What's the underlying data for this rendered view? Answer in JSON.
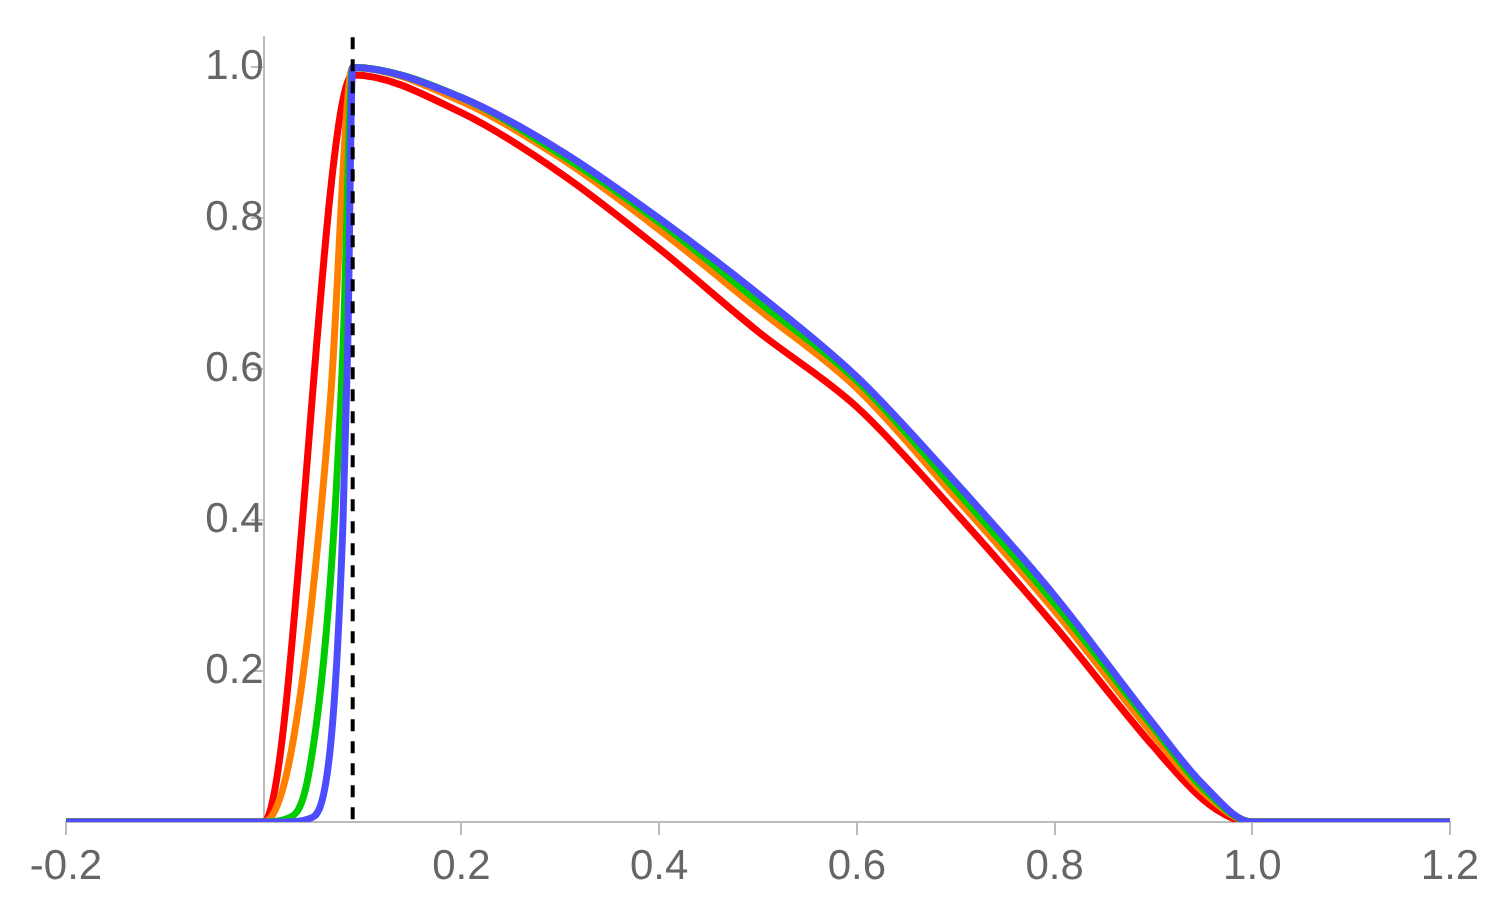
{
  "chart_data": {
    "type": "line",
    "xlim": [
      -0.2,
      1.2
    ],
    "ylim": [
      0,
      1.04
    ],
    "xticks": [
      -0.2,
      0.2,
      0.4,
      0.6,
      0.8,
      {
        "value": 1,
        "label": "1.0"
      },
      1.2
    ],
    "yticks": [
      0.2,
      0.4,
      0.6,
      0.8,
      {
        "value": 1,
        "label": "1.0"
      }
    ],
    "grid": false,
    "legend": false,
    "marker": "none",
    "line_style": "solid",
    "ref_lines": [
      {
        "axis": "x",
        "value": 0.09,
        "color": "#000000",
        "line_style": "dashed"
      }
    ],
    "series": [
      {
        "color": "#4d4dff",
        "x": [
          -0.2,
          0,
          0.0225,
          0.045,
          0.0675,
          0.08,
          0.085,
          0.09,
          0.2,
          0.3,
          0.4,
          0.5,
          0.6,
          0.7,
          0.8,
          0.9,
          0.95,
          1.0,
          1.2
        ],
        "values": [
          0,
          0,
          0,
          0.004,
          0.1,
          0.39,
          0.63,
          1,
          0.96,
          0.89,
          0.8,
          0.7,
          0.59,
          0.45,
          0.3,
          0.13,
          0.05,
          0,
          0
        ]
      },
      {
        "color": "#00cc00",
        "x": [
          -0.2,
          0,
          0.0225,
          0.045,
          0.0675,
          0.08,
          0.09,
          0.2,
          0.3,
          0.4,
          0.5,
          0.6,
          0.7,
          0.8,
          0.9,
          0.95,
          1.0,
          1.2
        ],
        "values": [
          0,
          0,
          0.004,
          0.06,
          0.32,
          0.62,
          1,
          0.96,
          0.885,
          0.795,
          0.69,
          0.585,
          0.44,
          0.29,
          0.125,
          0.045,
          0,
          0
        ]
      },
      {
        "color": "#ff8000",
        "x": [
          -0.2,
          0,
          0.0225,
          0.045,
          0.0675,
          0.09,
          0.2,
          0.3,
          0.4,
          0.5,
          0.6,
          0.7,
          0.8,
          0.9,
          0.95,
          1.0,
          1.2
        ],
        "values": [
          0,
          0,
          0.06,
          0.25,
          0.56,
          1,
          0.955,
          0.88,
          0.785,
          0.68,
          0.575,
          0.43,
          0.28,
          0.115,
          0.04,
          0,
          0
        ]
      },
      {
        "color": "#ff0000",
        "x": [
          -0.2,
          0,
          0.09,
          0.2,
          0.3,
          0.4,
          0.5,
          0.6,
          0.7,
          0.8,
          0.9,
          0.95,
          0.98,
          1.0,
          1.2
        ],
        "values": [
          0,
          0,
          0.99,
          0.94,
          0.86,
          0.76,
          0.65,
          0.55,
          0.41,
          0.26,
          0.1,
          0.03,
          0.005,
          0,
          0
        ]
      }
    ]
  }
}
